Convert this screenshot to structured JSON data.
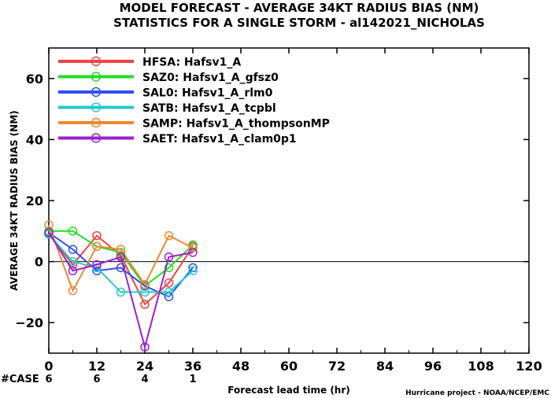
{
  "chart_data": {
    "type": "line",
    "title": "MODEL FORECAST - AVERAGE 34KT RADIUS BIAS (NM)",
    "subtitle": "STATISTICS FOR A SINGLE STORM - al142021_NICHOLAS",
    "xlabel": "Forecast lead time (hr)",
    "ylabel": "AVERAGE 34KT RADIUS BIAS (NM)",
    "credit": "Hurricane project - NOAA/NCEP/EMC",
    "xlim": [
      0,
      120
    ],
    "ylim": [
      -30,
      70
    ],
    "xticks": [
      0,
      12,
      24,
      36,
      48,
      60,
      72,
      84,
      96,
      108,
      120
    ],
    "yticks": [
      -20,
      0,
      20,
      40,
      60
    ],
    "zero_line": true,
    "grid": false,
    "legend_position": "top-left",
    "x": [
      0,
      6,
      12,
      18,
      24,
      30,
      36
    ],
    "series": [
      {
        "name": "HFSA: Hafsv1_A",
        "color": "#ee4444",
        "values": [
          9,
          -1,
          8.5,
          2,
          -14,
          -7,
          5
        ]
      },
      {
        "name": "SAZ0: Hafsv1_A_gfsz0",
        "color": "#22dd22",
        "values": [
          10,
          10,
          5,
          3,
          -8,
          -2,
          5.5
        ]
      },
      {
        "name": "SAL0: Hafsv1_A_rlm0",
        "color": "#2f4fee",
        "values": [
          9.5,
          4,
          -3,
          -2,
          -8,
          -11.5,
          -2
        ]
      },
      {
        "name": "SATB: Hafsv1_A_tcpbl",
        "color": "#22cccc",
        "values": [
          9,
          0,
          -2,
          -10,
          -10,
          -10,
          -3
        ]
      },
      {
        "name": "SAMP: Hafsv1_A_thompsonMP",
        "color": "#ee8833",
        "values": [
          12,
          -9.5,
          5,
          4,
          -7.5,
          8.5,
          4.5
        ]
      },
      {
        "name": "SAET: Hafsv1_A_clam0p1",
        "color": "#9922cc",
        "values": [
          9.5,
          -3,
          -1,
          1.5,
          -28,
          1.5,
          3
        ]
      }
    ],
    "cases": {
      "label": "#CASE",
      "label_color": "#22cccc",
      "x": [
        0,
        12,
        24,
        36
      ],
      "values": [
        "6",
        "6",
        "4",
        "1"
      ]
    }
  }
}
